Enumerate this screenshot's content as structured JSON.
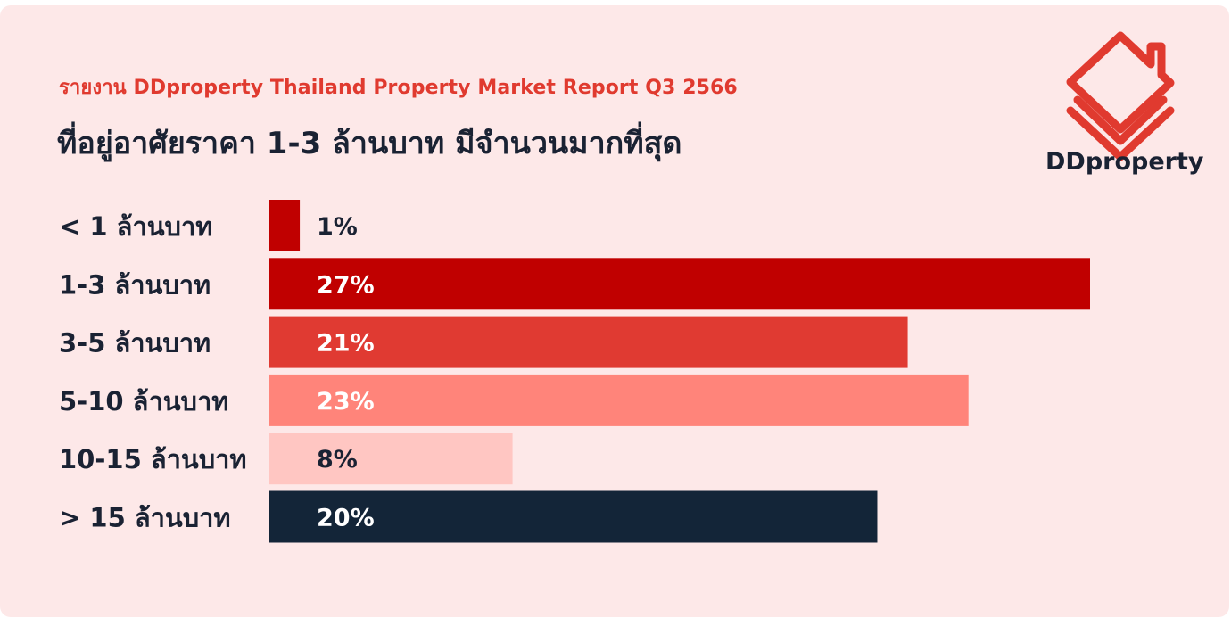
{
  "header": {
    "subtitle": "รายงาน DDproperty Thailand Property Market Report Q3 2566",
    "title": "ที่อยู่อาศัยราคา 1-3 ล้านบาท มีจำนวนมากที่สุด"
  },
  "brand": {
    "name": "DDproperty",
    "logo_icon": "ddproperty-house-logo-icon",
    "logo_color": "#e03a2f"
  },
  "colors": {
    "background": "#fde8e8",
    "subtitle": "#e03a2f",
    "title": "#1a2233"
  },
  "chart_data": {
    "type": "bar",
    "orientation": "horizontal",
    "categories": [
      "< 1 ล้านบาท",
      "1-3 ล้านบาท",
      "3-5 ล้านบาท",
      "5-10 ล้านบาท",
      "10-15 ล้านบาท",
      "> 15 ล้านบาท"
    ],
    "values": [
      1,
      27,
      21,
      23,
      8,
      20
    ],
    "value_labels": [
      "1%",
      "27%",
      "21%",
      "23%",
      "8%",
      "20%"
    ],
    "bar_colors": [
      "#c00000",
      "#c00000",
      "#e03a32",
      "#ff847a",
      "#ffc6c2",
      "#132538"
    ],
    "label_colors": [
      "#1a2233",
      "#ffffff",
      "#ffffff",
      "#ffffff",
      "#1a2233",
      "#ffffff"
    ],
    "xlim": [
      0,
      27
    ],
    "grid": false,
    "legend": "none",
    "title": "ที่อยู่อาศัยราคา 1-3 ล้านบาท มีจำนวนมากที่สุด",
    "xlabel": "",
    "ylabel": ""
  }
}
